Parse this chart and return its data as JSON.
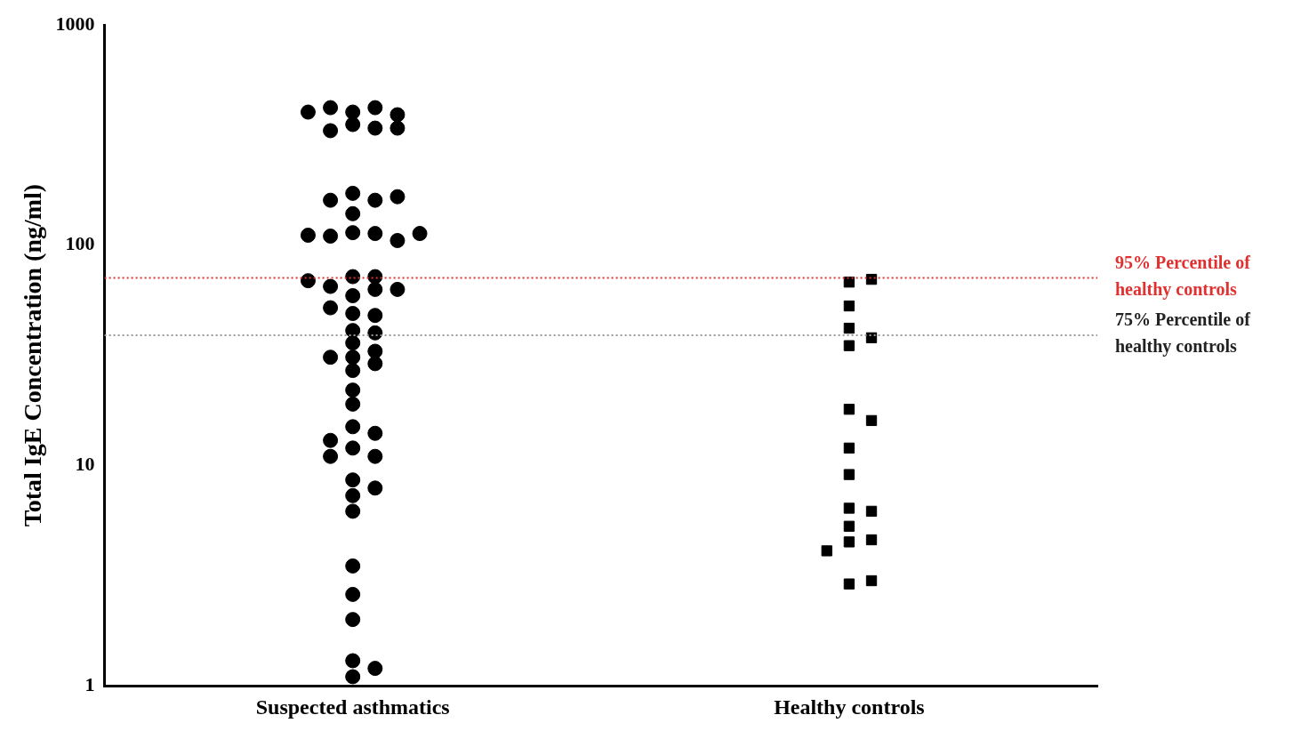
{
  "chart_data": {
    "type": "scatter",
    "ylabel": "Total IgE Concentration (ng/ml)",
    "categories": [
      "Suspected asthmatics",
      "Healthy controls"
    ],
    "log": "y",
    "ylim": [
      1,
      1000
    ],
    "yticks": [
      1,
      10,
      100,
      1000
    ],
    "grid": false,
    "legend": false,
    "series": [
      {
        "color": "#000000",
        "marker": "circle",
        "x": [
          "Suspected asthmatics",
          "Suspected asthmatics",
          "Suspected asthmatics",
          "Suspected asthmatics",
          "Suspected asthmatics",
          "Suspected asthmatics",
          "Suspected asthmatics",
          "Suspected asthmatics",
          "Suspected asthmatics",
          "Suspected asthmatics",
          "Suspected asthmatics",
          "Suspected asthmatics",
          "Suspected asthmatics",
          "Suspected asthmatics",
          "Suspected asthmatics",
          "Suspected asthmatics",
          "Suspected asthmatics",
          "Suspected asthmatics",
          "Suspected asthmatics",
          "Suspected asthmatics",
          "Suspected asthmatics",
          "Suspected asthmatics",
          "Suspected asthmatics",
          "Suspected asthmatics",
          "Suspected asthmatics",
          "Suspected asthmatics",
          "Suspected asthmatics",
          "Suspected asthmatics",
          "Suspected asthmatics",
          "Suspected asthmatics",
          "Suspected asthmatics",
          "Suspected asthmatics",
          "Suspected asthmatics",
          "Suspected asthmatics",
          "Suspected asthmatics",
          "Suspected asthmatics",
          "Suspected asthmatics",
          "Suspected asthmatics",
          "Suspected asthmatics",
          "Suspected asthmatics",
          "Suspected asthmatics",
          "Suspected asthmatics",
          "Suspected asthmatics",
          "Suspected asthmatics",
          "Suspected asthmatics",
          "Suspected asthmatics",
          "Suspected asthmatics",
          "Suspected asthmatics",
          "Suspected asthmatics",
          "Suspected asthmatics",
          "Suspected asthmatics",
          "Suspected asthmatics",
          "Suspected asthmatics",
          "Suspected asthmatics",
          "Suspected asthmatics",
          "Suspected asthmatics"
        ],
        "values": [
          402,
          421,
          421,
          391,
          402,
          353,
          340,
          331,
          340,
          172,
          160,
          139,
          160,
          166,
          114,
          113,
          110,
          105,
          111,
          113,
          72,
          72,
          65,
          59,
          63,
          63,
          69,
          49,
          48,
          52,
          41,
          40,
          36,
          33,
          31,
          29,
          27,
          31,
          22,
          19,
          15,
          14,
          12,
          11,
          11,
          13,
          8.6,
          7.3,
          7.9,
          6.2,
          3.5,
          2.6,
          2.0,
          1.3,
          1.2,
          1.1
        ]
      },
      {
        "color": "#000000",
        "marker": "square",
        "x": [
          "Healthy controls",
          "Healthy controls",
          "Healthy controls",
          "Healthy controls",
          "Healthy controls",
          "Healthy controls",
          "Healthy controls",
          "Healthy controls",
          "Healthy controls",
          "Healthy controls",
          "Healthy controls",
          "Healthy controls",
          "Healthy controls",
          "Healthy controls",
          "Healthy controls",
          "Healthy controls",
          "Healthy controls",
          "Healthy controls"
        ],
        "values": [
          68,
          70,
          53,
          42,
          38,
          35,
          18,
          16,
          12,
          9.1,
          6.4,
          6.2,
          5.3,
          4.5,
          4.6,
          4.1,
          2.9,
          3.0
        ]
      }
    ],
    "ref_lines": [
      {
        "axis": "y",
        "value": 71,
        "label": "95% Percentile of healthy controls",
        "color": "#e03030",
        "line_style": "dotted"
      },
      {
        "axis": "y",
        "value": 39,
        "label": "75% Percentile of healthy controls",
        "color": "#999999",
        "line_style": "dotted"
      }
    ]
  }
}
